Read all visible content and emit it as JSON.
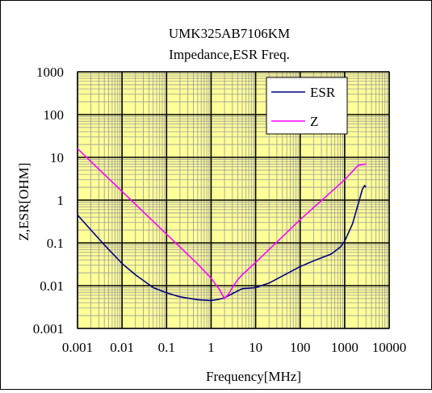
{
  "chart_data": {
    "type": "line",
    "title": "UMK325AB7106KM",
    "subtitle": "Impedance,ESR  Freq.",
    "xlabel": "Frequency[MHz]",
    "ylabel": "Z,ESR[OHM]",
    "x_scale": "log",
    "y_scale": "log",
    "xlim": [
      0.001,
      10000
    ],
    "ylim": [
      0.001,
      1000
    ],
    "x_ticks": [
      "0.001",
      "0.01",
      "0.1",
      "1",
      "10",
      "100",
      "1000",
      "10000"
    ],
    "x_tick_values": [
      0.001,
      0.01,
      0.1,
      1,
      10,
      100,
      1000,
      10000
    ],
    "y_ticks": [
      "1000",
      "100",
      "10",
      "1",
      "0.1",
      "0.01",
      "0.001"
    ],
    "y_tick_values": [
      1000,
      100,
      10,
      1,
      0.1,
      0.01,
      0.001
    ],
    "grid": true,
    "plot_background": "#FFFF99",
    "legend_position": "top-right",
    "series": [
      {
        "name": "ESR",
        "color": "#000080",
        "points": [
          [
            0.001,
            0.45
          ],
          [
            0.002,
            0.2
          ],
          [
            0.004,
            0.09
          ],
          [
            0.01,
            0.033
          ],
          [
            0.02,
            0.018
          ],
          [
            0.05,
            0.009
          ],
          [
            0.1,
            0.0068
          ],
          [
            0.2,
            0.0055
          ],
          [
            0.5,
            0.0047
          ],
          [
            1,
            0.0045
          ],
          [
            1.5,
            0.0048
          ],
          [
            2,
            0.0052
          ],
          [
            3,
            0.0065
          ],
          [
            5,
            0.0085
          ],
          [
            10,
            0.009
          ],
          [
            20,
            0.0115
          ],
          [
            50,
            0.019
          ],
          [
            100,
            0.028
          ],
          [
            200,
            0.038
          ],
          [
            500,
            0.055
          ],
          [
            800,
            0.08
          ],
          [
            1000,
            0.11
          ],
          [
            1500,
            0.28
          ],
          [
            2000,
            0.8
          ],
          [
            2500,
            1.8
          ],
          [
            2800,
            2.2
          ],
          [
            3000,
            2.0
          ]
        ]
      },
      {
        "name": "Z",
        "color": "#FF00FF",
        "points": [
          [
            0.001,
            16
          ],
          [
            0.01,
            1.6
          ],
          [
            0.1,
            0.16
          ],
          [
            0.5,
            0.032
          ],
          [
            1,
            0.015
          ],
          [
            1.5,
            0.0085
          ],
          [
            2,
            0.005
          ],
          [
            2.5,
            0.0065
          ],
          [
            3,
            0.009
          ],
          [
            4,
            0.014
          ],
          [
            5,
            0.018
          ],
          [
            10,
            0.035
          ],
          [
            100,
            0.35
          ],
          [
            1000,
            3.0
          ],
          [
            2000,
            6.5
          ],
          [
            3000,
            7.0
          ]
        ]
      }
    ]
  }
}
